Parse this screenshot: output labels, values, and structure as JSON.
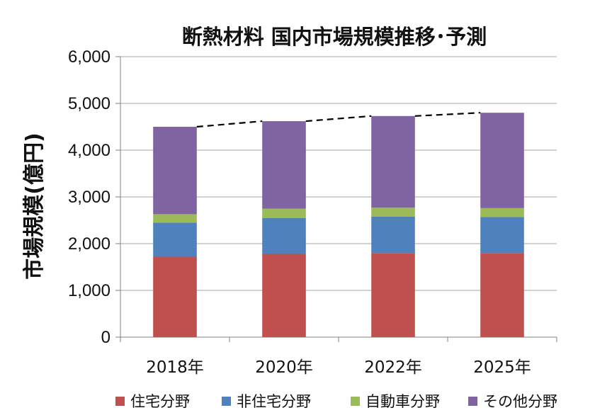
{
  "chart_data": {
    "type": "bar",
    "stacked": true,
    "title": "断熱材料 国内市場規模推移･予測",
    "xlabel": "",
    "ylabel": "市場規模(億円)",
    "categories": [
      "2018年",
      "2020年",
      "2022年",
      "2025年"
    ],
    "ylim": [
      0,
      6000
    ],
    "yticks": [
      "0",
      "1,000",
      "2,000",
      "3,000",
      "4,000",
      "5,000",
      "6,000"
    ],
    "series": [
      {
        "name": "住宅分野",
        "color": "#c0504d",
        "values": [
          1720,
          1780,
          1800,
          1800
        ]
      },
      {
        "name": "非住宅分野",
        "color": "#4f81bd",
        "values": [
          730,
          770,
          780,
          770
        ]
      },
      {
        "name": "自動車分野",
        "color": "#9bbb59",
        "values": [
          180,
          200,
          190,
          190
        ]
      },
      {
        "name": "その他分野",
        "color": "#8064a2",
        "values": [
          1870,
          1870,
          1960,
          2040
        ]
      }
    ],
    "totals_trend": {
      "style": "dashed",
      "color": "#000000"
    },
    "grid": "horizontal",
    "legend_position": "bottom"
  }
}
